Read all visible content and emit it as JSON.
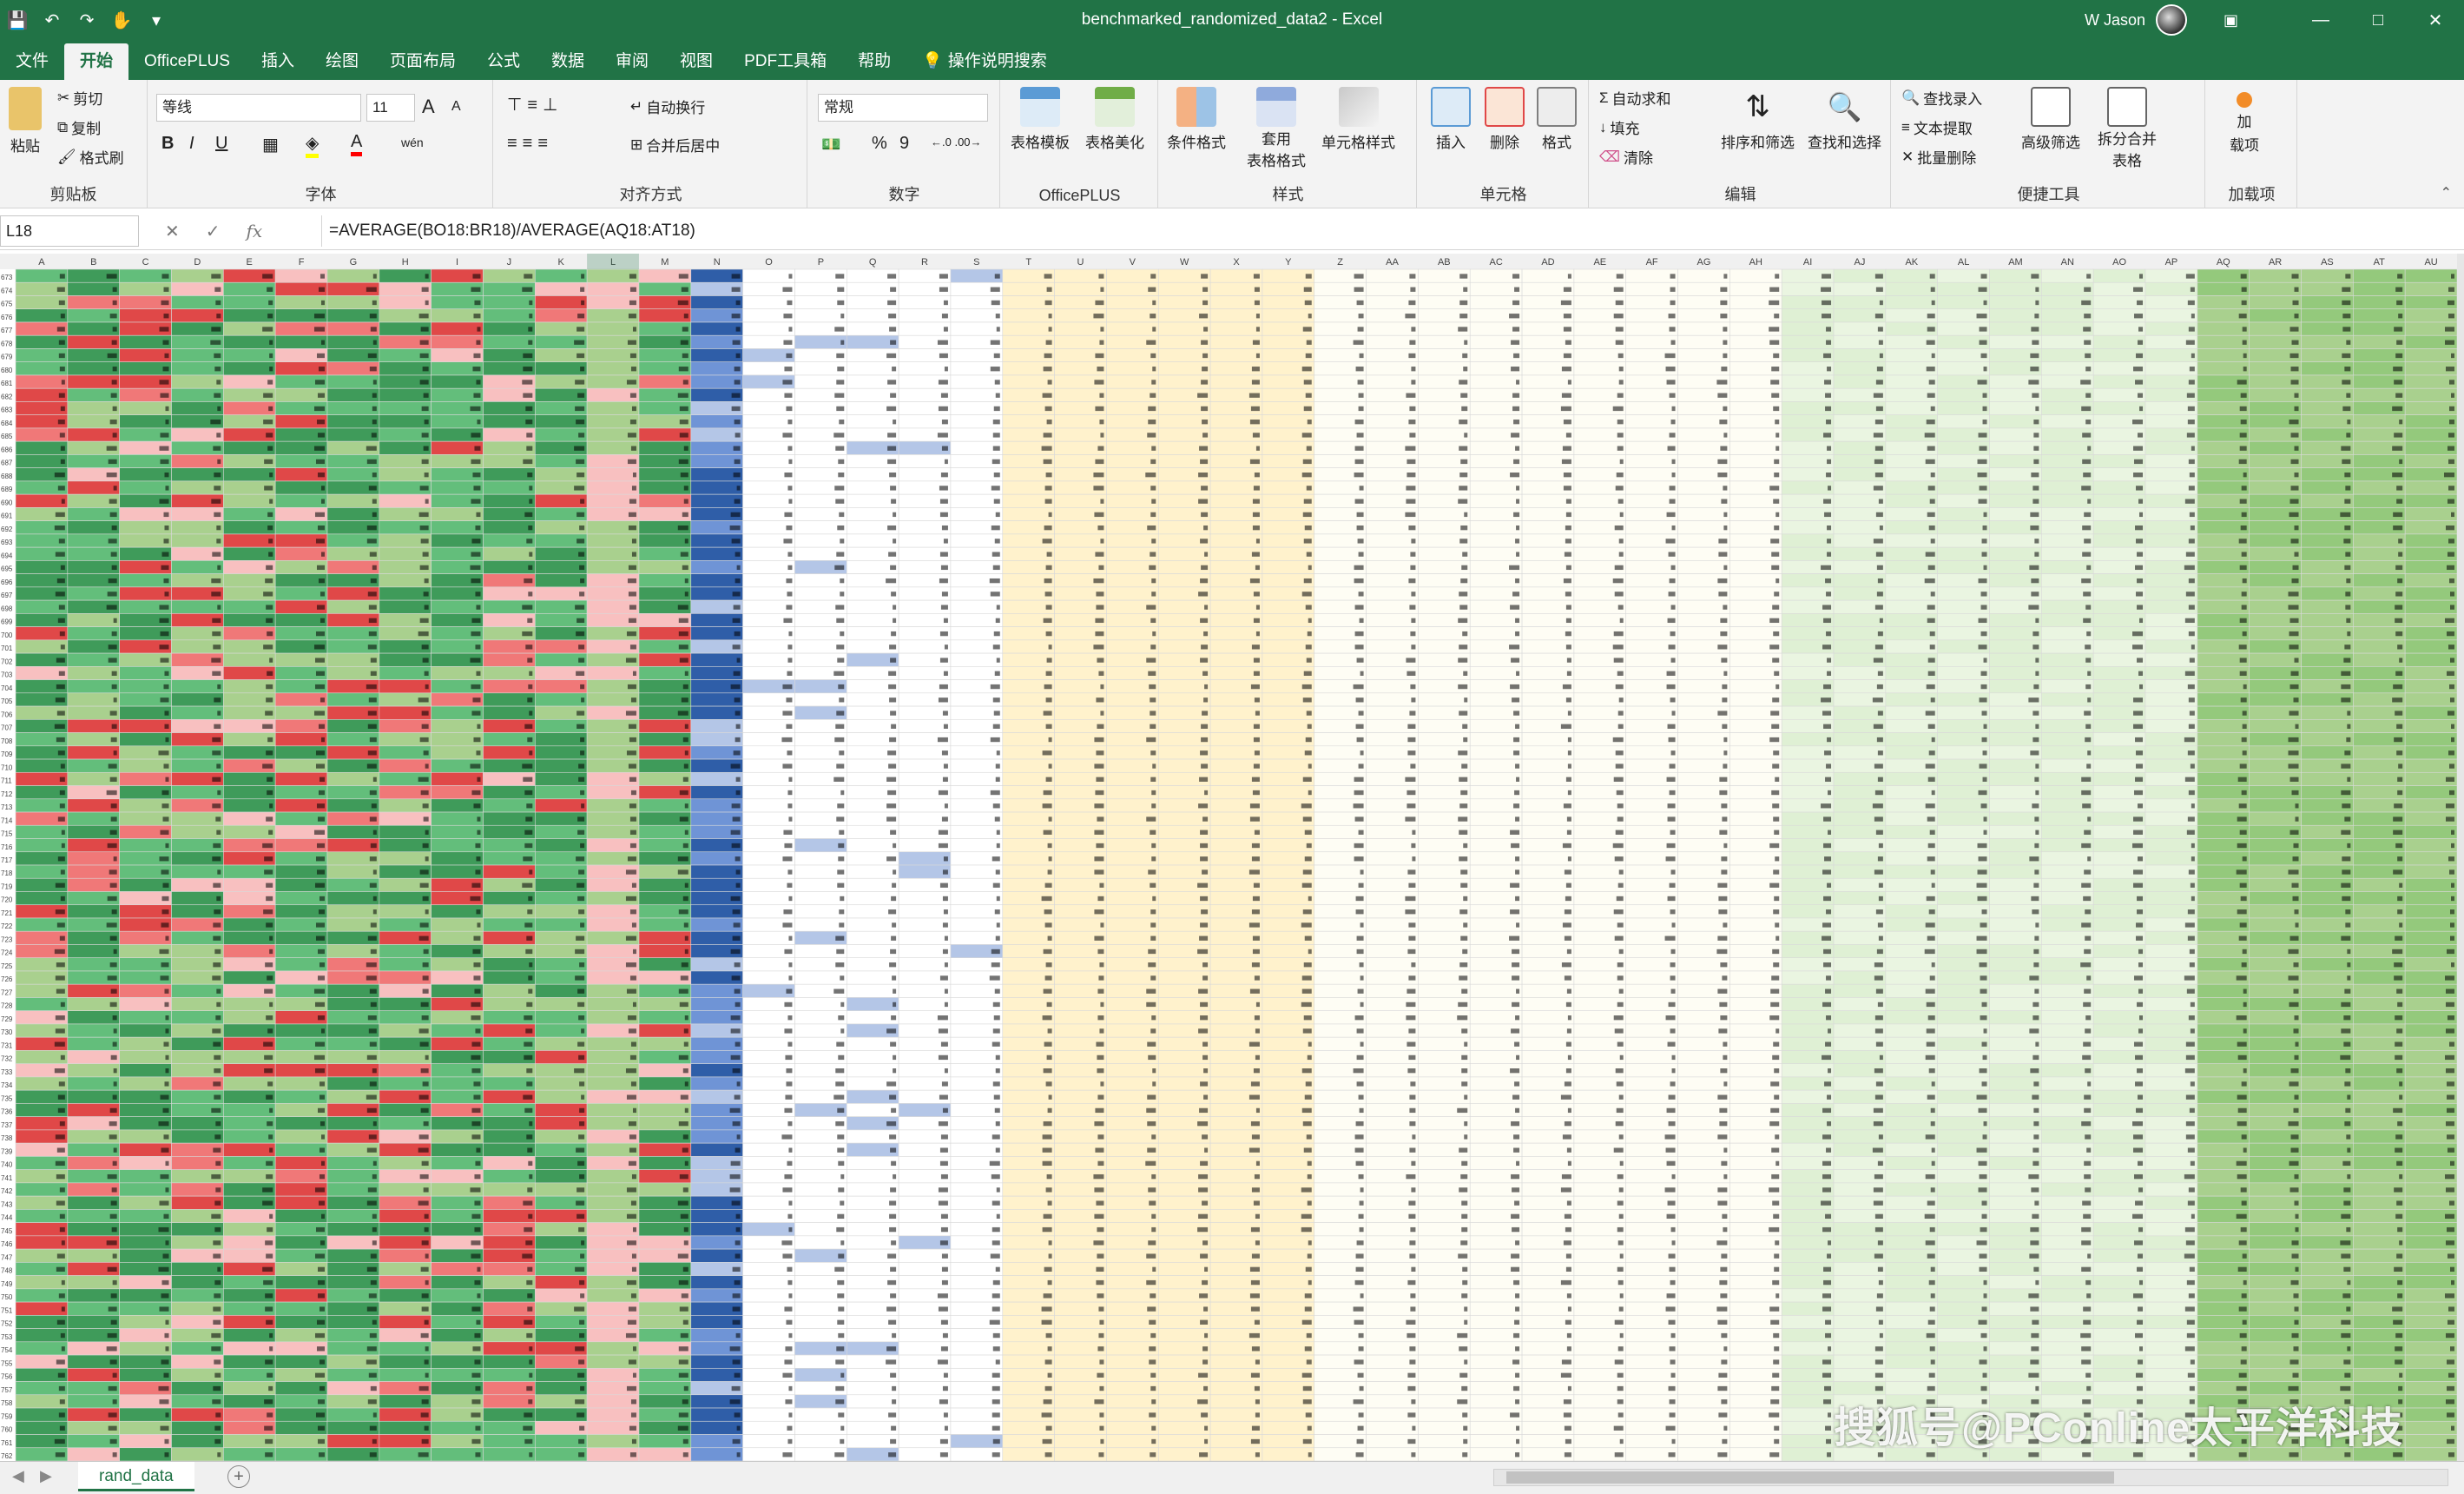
{
  "window": {
    "title": "benchmarked_randomized_data2 - Excel",
    "user": "W Jason",
    "qa_icons": [
      "save-icon",
      "undo-icon",
      "redo-icon",
      "touch-mode-icon",
      "customize-icon"
    ]
  },
  "tabs": [
    "文件",
    "开始",
    "OfficePLUS",
    "插入",
    "绘图",
    "页面布局",
    "公式",
    "数据",
    "审阅",
    "视图",
    "PDF工具箱",
    "帮助"
  ],
  "active_tab": "开始",
  "tell_me": "操作说明搜索",
  "ribbon": {
    "clipboard": {
      "paste": "粘贴",
      "cut": "剪切",
      "copy": "复制",
      "format_painter": "格式刷",
      "label": "剪贴板"
    },
    "font": {
      "name": "等线",
      "size": "11",
      "grow": "A",
      "shrink": "A",
      "bold": "B",
      "italic": "I",
      "underline": "U",
      "wen": "wén",
      "label": "字体"
    },
    "alignment": {
      "wrap": "自动换行",
      "merge": "合并后居中",
      "label": "对齐方式"
    },
    "number": {
      "format": "常规",
      "percent": "%",
      "comma": "9",
      "label": "数字"
    },
    "officeplus": {
      "table_template": "表格模板",
      "table_beautify": "表格美化",
      "label": "OfficePLUS"
    },
    "styles": {
      "conditional": "条件格式",
      "as_table_1": "套用",
      "as_table_2": "表格格式",
      "cell_styles": "单元格样式",
      "label": "样式"
    },
    "cells": {
      "insert": "插入",
      "delete": "删除",
      "format": "格式",
      "label": "单元格"
    },
    "editing": {
      "autosum": "自动求和",
      "fill": "填充",
      "clear": "清除",
      "sort": "排序和筛选",
      "find": "查找和选择",
      "label": "编辑"
    },
    "tools": {
      "find_input": "查找录入",
      "text_extract": "文本提取",
      "batch_delete": "批量删除",
      "advanced_filter": "高级筛选",
      "split_merge_1": "拆分合并",
      "split_merge_2": "表格",
      "label": "便捷工具"
    },
    "addins": {
      "addin_1": "加",
      "addin_2": "载项",
      "label": "加载项"
    }
  },
  "formula_bar": {
    "name_box": "L18",
    "fx": "fx",
    "formula": "=AVERAGE(BO18:BR18)/AVERAGE(AQ18:AT18)"
  },
  "grid": {
    "columns": [
      "A",
      "B",
      "C",
      "D",
      "E",
      "F",
      "G",
      "H",
      "I",
      "J",
      "K",
      "L",
      "M",
      "N",
      "O",
      "P",
      "Q",
      "R",
      "S",
      "T",
      "U",
      "V",
      "W",
      "X",
      "Y",
      "Z",
      "AA",
      "AB",
      "AC",
      "AD",
      "AE",
      "AF",
      "AG",
      "AH",
      "AI",
      "AJ",
      "AK",
      "AL",
      "AM",
      "AN",
      "AO",
      "AP",
      "AQ",
      "AR",
      "AS",
      "AT",
      "AU"
    ],
    "first_row": 673,
    "last_row": 762,
    "colors": {
      "green_light": "#a9d08e",
      "green_mid": "#63be7b",
      "green_dark": "#3f9b5a",
      "red_light": "#f8c0c0",
      "red_mid": "#f07878",
      "red_dark": "#e04848",
      "blue_light": "#b4c6e7",
      "blue_mid": "#6f94d6",
      "blue_dark": "#2f5ea8",
      "yellow": "#fff2cc",
      "header": "#f0f0f0",
      "gridline": "#d9d9d9"
    }
  },
  "sheet_tabs": [
    "rand_data"
  ],
  "watermark": "搜狐号@PConline太平洋科技"
}
